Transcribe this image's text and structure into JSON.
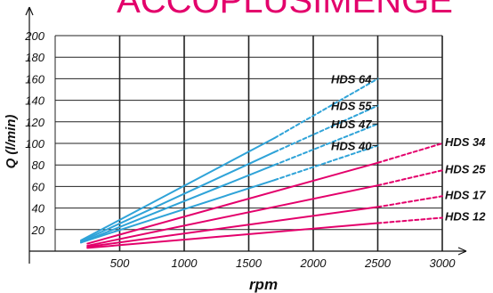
{
  "chart_data": {
    "type": "line",
    "title": "ACCOPLUSIMENGE",
    "xlabel": "rpm",
    "ylabel": "Q (l/min)",
    "xlim": [
      0,
      3000
    ],
    "ylim": [
      0,
      200
    ],
    "x_ticks": [
      500,
      1000,
      1500,
      2000,
      2500,
      3000
    ],
    "y_ticks": [
      20,
      40,
      60,
      80,
      100,
      120,
      140,
      160,
      180,
      200
    ],
    "grid": true,
    "series": [
      {
        "name": "HDS 64",
        "color": "#2fa3d8",
        "solid": [
          [
            200,
            10
          ],
          [
            1700,
            105
          ]
        ],
        "dashed": [
          [
            1700,
            105
          ],
          [
            2500,
            160
          ]
        ]
      },
      {
        "name": "HDS 55",
        "color": "#2fa3d8",
        "solid": [
          [
            200,
            9
          ],
          [
            1700,
            92
          ]
        ],
        "dashed": [
          [
            1700,
            92
          ],
          [
            2500,
            135
          ]
        ]
      },
      {
        "name": "HDS 47",
        "color": "#2fa3d8",
        "solid": [
          [
            200,
            8
          ],
          [
            1700,
            80
          ]
        ],
        "dashed": [
          [
            1700,
            80
          ],
          [
            2500,
            118
          ]
        ]
      },
      {
        "name": "HDS 40",
        "color": "#2fa3d8",
        "solid": [
          [
            200,
            8
          ],
          [
            1700,
            66
          ]
        ],
        "dashed": [
          [
            1700,
            66
          ],
          [
            2500,
            98
          ]
        ]
      },
      {
        "name": "HDS 34",
        "color": "#e3006b",
        "solid": [
          [
            250,
            7
          ],
          [
            2500,
            82
          ]
        ],
        "dashed": [
          [
            2500,
            82
          ],
          [
            3000,
            100
          ]
        ]
      },
      {
        "name": "HDS 25",
        "color": "#e3006b",
        "solid": [
          [
            250,
            5
          ],
          [
            2500,
            61
          ]
        ],
        "dashed": [
          [
            2500,
            61
          ],
          [
            3000,
            75
          ]
        ]
      },
      {
        "name": "HDS 17",
        "color": "#e3006b",
        "solid": [
          [
            250,
            4
          ],
          [
            2500,
            41
          ]
        ],
        "dashed": [
          [
            2500,
            41
          ],
          [
            3000,
            51
          ]
        ]
      },
      {
        "name": "HDS 12",
        "color": "#e3006b",
        "solid": [
          [
            250,
            3
          ],
          [
            2500,
            26
          ]
        ],
        "dashed": [
          [
            2500,
            26
          ],
          [
            3000,
            31
          ]
        ]
      }
    ]
  }
}
